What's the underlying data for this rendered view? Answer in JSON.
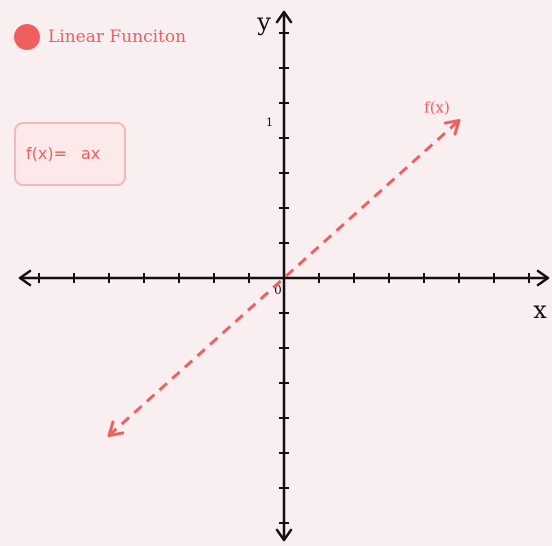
{
  "colors": {
    "background": "#f9eef0",
    "accent": "#ef5f5f",
    "axis": "#111111",
    "formula_box_bg": "#fce9e9",
    "formula_box_border": "#f4b8b8"
  },
  "legend": {
    "label": "Linear Funciton"
  },
  "formula": {
    "lhs": "f(x)=",
    "rhs": "ax"
  },
  "axes": {
    "x_label": "x",
    "y_label": "y",
    "origin_label": "0",
    "y_tick_label": "1",
    "y_tick_value": 1,
    "x_range": [
      -7.5,
      7.5
    ],
    "y_range": [
      -7.3,
      7.3
    ]
  },
  "line": {
    "label": "f(x)",
    "slope": 1,
    "x_start": -5,
    "x_end": 5,
    "style": "dashed",
    "arrows": "both-ends"
  }
}
